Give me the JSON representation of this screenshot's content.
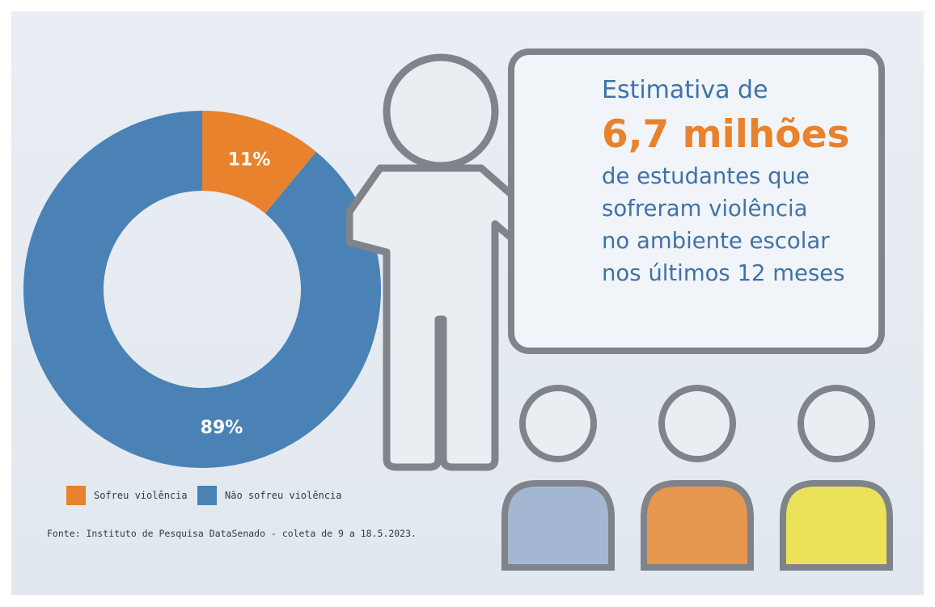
{
  "chart_data": {
    "type": "pie",
    "donut": true,
    "categories": [
      "Sofreu violência",
      "Não sofreu violência"
    ],
    "values": [
      11,
      89
    ],
    "data_labels": [
      "11%",
      "89%"
    ],
    "colors": [
      "#e8822d",
      "#4a82b5"
    ],
    "legend": "bottom"
  },
  "legend_items": [
    {
      "label": "Sofreu violência",
      "color": "#e8822d"
    },
    {
      "label": "Não sofreu violência",
      "color": "#4a82b5"
    }
  ],
  "source_text": "Fonte: Instituto de Pesquisa DataSenado - coleta de 9 a 18.5.2023.",
  "info": {
    "intro": "Estimativa de",
    "headline": "6,7 milhões",
    "lines": [
      "de estudantes que",
      "sofreram violência",
      "no ambiente escolar",
      "nos últimos 12 meses"
    ]
  },
  "colors": {
    "background": "#e6ebf1",
    "outline": "#7f838a",
    "figure_fill": "#eaeef3",
    "student_1": "#a3b7d3",
    "student_2": "#e8974f",
    "student_3": "#ece25a",
    "text_blue": "#3f73a8",
    "text_orange": "#e8822d"
  }
}
